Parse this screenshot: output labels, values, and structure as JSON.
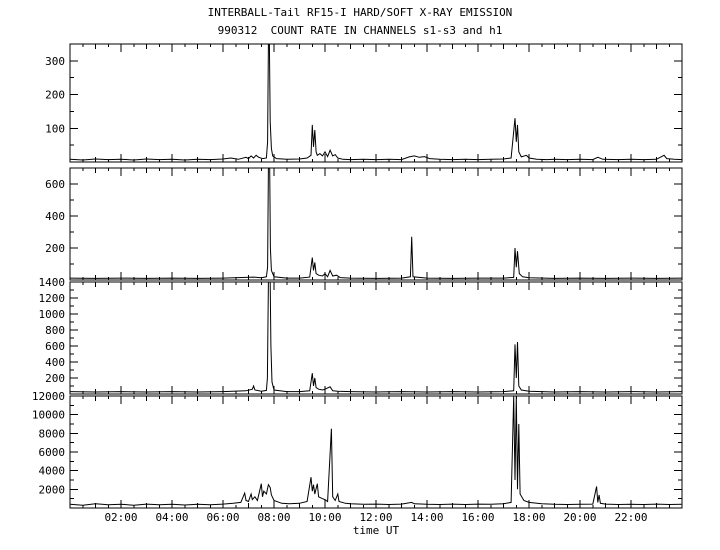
{
  "title": "INTERBALL-Tail RF15-I HARD/SOFT X-RAY EMISSION",
  "subtitle": "990312  COUNT RATE IN CHANNELS s1-s3 and h1",
  "xlabel": "time UT",
  "chart_data": {
    "type": "line",
    "title": "INTERBALL-Tail RF15-I HARD/SOFT X-RAY EMISSION",
    "subtitle": "990312  COUNT RATE IN CHANNELS s1-s3 and h1",
    "xlabel": "time UT",
    "x_unit": "hours_UT",
    "xlim": [
      0,
      24
    ],
    "xtick_hours": [
      2,
      4,
      6,
      8,
      10,
      12,
      14,
      16,
      18,
      20,
      22
    ],
    "xtick_labels": [
      "02:00",
      "04:00",
      "06:00",
      "08:00",
      "10:00",
      "12:00",
      "14:00",
      "16:00",
      "18:00",
      "20:00",
      "22:00"
    ],
    "line_color": "#000000",
    "background": "#ffffff",
    "grid": false,
    "legend": "none",
    "panels": [
      {
        "name": "s1",
        "ylim": [
          0,
          350
        ],
        "yticks": [
          100,
          200,
          300
        ],
        "points": [
          [
            0,
            8
          ],
          [
            0.5,
            6
          ],
          [
            1,
            9
          ],
          [
            1.5,
            7
          ],
          [
            2,
            8
          ],
          [
            2.5,
            6
          ],
          [
            3,
            9
          ],
          [
            3.5,
            7
          ],
          [
            4,
            8
          ],
          [
            4.5,
            6
          ],
          [
            5,
            8
          ],
          [
            5.5,
            7
          ],
          [
            6,
            9
          ],
          [
            6.3,
            12
          ],
          [
            6.6,
            8
          ],
          [
            6.9,
            14
          ],
          [
            7.0,
            10
          ],
          [
            7.1,
            18
          ],
          [
            7.2,
            12
          ],
          [
            7.3,
            20
          ],
          [
            7.4,
            14
          ],
          [
            7.55,
            10
          ],
          [
            7.7,
            12
          ],
          [
            7.75,
            60
          ],
          [
            7.78,
            360
          ],
          [
            7.82,
            355
          ],
          [
            7.85,
            120
          ],
          [
            7.9,
            40
          ],
          [
            7.95,
            18
          ],
          [
            8.1,
            10
          ],
          [
            8.5,
            8
          ],
          [
            9.0,
            9
          ],
          [
            9.3,
            12
          ],
          [
            9.45,
            20
          ],
          [
            9.5,
            110
          ],
          [
            9.55,
            45
          ],
          [
            9.6,
            95
          ],
          [
            9.65,
            30
          ],
          [
            9.7,
            20
          ],
          [
            9.8,
            25
          ],
          [
            9.9,
            18
          ],
          [
            10.0,
            30
          ],
          [
            10.1,
            16
          ],
          [
            10.2,
            35
          ],
          [
            10.3,
            18
          ],
          [
            10.4,
            22
          ],
          [
            10.5,
            12
          ],
          [
            10.7,
            8
          ],
          [
            11,
            7
          ],
          [
            11.5,
            8
          ],
          [
            12,
            7
          ],
          [
            12.5,
            8
          ],
          [
            13,
            7
          ],
          [
            13.3,
            15
          ],
          [
            13.5,
            18
          ],
          [
            13.7,
            14
          ],
          [
            13.9,
            16
          ],
          [
            14.1,
            10
          ],
          [
            14.5,
            8
          ],
          [
            15,
            7
          ],
          [
            15.5,
            8
          ],
          [
            16,
            7
          ],
          [
            16.5,
            8
          ],
          [
            17,
            9
          ],
          [
            17.3,
            12
          ],
          [
            17.45,
            130
          ],
          [
            17.5,
            60
          ],
          [
            17.55,
            110
          ],
          [
            17.6,
            30
          ],
          [
            17.7,
            15
          ],
          [
            17.9,
            20
          ],
          [
            18.0,
            12
          ],
          [
            18.3,
            8
          ],
          [
            18.7,
            7
          ],
          [
            19,
            8
          ],
          [
            19.5,
            7
          ],
          [
            20,
            8
          ],
          [
            20.5,
            7
          ],
          [
            20.7,
            14
          ],
          [
            20.9,
            8
          ],
          [
            21.5,
            7
          ],
          [
            22,
            8
          ],
          [
            22.5,
            7
          ],
          [
            23,
            8
          ],
          [
            23.3,
            20
          ],
          [
            23.4,
            10
          ],
          [
            23.7,
            8
          ],
          [
            24,
            7
          ]
        ]
      },
      {
        "name": "s2",
        "ylim": [
          0,
          700
        ],
        "yticks": [
          200,
          400,
          600
        ],
        "points": [
          [
            0,
            12
          ],
          [
            1,
            10
          ],
          [
            2,
            12
          ],
          [
            3,
            10
          ],
          [
            4,
            12
          ],
          [
            5,
            10
          ],
          [
            6,
            12
          ],
          [
            6.9,
            16
          ],
          [
            7.2,
            18
          ],
          [
            7.5,
            14
          ],
          [
            7.7,
            20
          ],
          [
            7.75,
            80
          ],
          [
            7.78,
            720
          ],
          [
            7.83,
            700
          ],
          [
            7.86,
            200
          ],
          [
            7.9,
            60
          ],
          [
            8.0,
            20
          ],
          [
            8.5,
            12
          ],
          [
            9.0,
            12
          ],
          [
            9.4,
            18
          ],
          [
            9.5,
            140
          ],
          [
            9.55,
            60
          ],
          [
            9.6,
            110
          ],
          [
            9.65,
            40
          ],
          [
            9.75,
            30
          ],
          [
            9.9,
            25
          ],
          [
            10.0,
            40
          ],
          [
            10.1,
            20
          ],
          [
            10.2,
            60
          ],
          [
            10.3,
            25
          ],
          [
            10.45,
            30
          ],
          [
            10.6,
            15
          ],
          [
            11,
            12
          ],
          [
            12,
            10
          ],
          [
            13,
            12
          ],
          [
            13.35,
            20
          ],
          [
            13.4,
            270
          ],
          [
            13.45,
            20
          ],
          [
            14,
            12
          ],
          [
            15,
            10
          ],
          [
            16,
            12
          ],
          [
            17,
            12
          ],
          [
            17.4,
            16
          ],
          [
            17.45,
            200
          ],
          [
            17.5,
            80
          ],
          [
            17.55,
            180
          ],
          [
            17.62,
            40
          ],
          [
            17.75,
            20
          ],
          [
            18,
            14
          ],
          [
            19,
            10
          ],
          [
            20,
            12
          ],
          [
            21,
            10
          ],
          [
            22,
            12
          ],
          [
            23,
            10
          ],
          [
            24,
            12
          ]
        ]
      },
      {
        "name": "s3",
        "ylim": [
          0,
          1400
        ],
        "yticks": [
          200,
          400,
          600,
          800,
          1000,
          1200,
          1400
        ],
        "points": [
          [
            0,
            30
          ],
          [
            1,
            25
          ],
          [
            2,
            30
          ],
          [
            3,
            25
          ],
          [
            4,
            30
          ],
          [
            5,
            25
          ],
          [
            6,
            30
          ],
          [
            6.9,
            40
          ],
          [
            7.15,
            60
          ],
          [
            7.2,
            100
          ],
          [
            7.25,
            50
          ],
          [
            7.5,
            35
          ],
          [
            7.7,
            45
          ],
          [
            7.74,
            200
          ],
          [
            7.78,
            1420
          ],
          [
            7.85,
            1400
          ],
          [
            7.88,
            600
          ],
          [
            7.92,
            150
          ],
          [
            8.0,
            50
          ],
          [
            8.5,
            30
          ],
          [
            9.0,
            30
          ],
          [
            9.4,
            40
          ],
          [
            9.5,
            260
          ],
          [
            9.55,
            100
          ],
          [
            9.6,
            200
          ],
          [
            9.65,
            80
          ],
          [
            9.75,
            60
          ],
          [
            9.9,
            50
          ],
          [
            10.0,
            60
          ],
          [
            10.2,
            90
          ],
          [
            10.3,
            40
          ],
          [
            10.5,
            35
          ],
          [
            11,
            30
          ],
          [
            12,
            25
          ],
          [
            13,
            30
          ],
          [
            14,
            25
          ],
          [
            15,
            30
          ],
          [
            16,
            25
          ],
          [
            17,
            30
          ],
          [
            17.4,
            40
          ],
          [
            17.45,
            620
          ],
          [
            17.5,
            200
          ],
          [
            17.55,
            650
          ],
          [
            17.6,
            100
          ],
          [
            17.7,
            50
          ],
          [
            18,
            35
          ],
          [
            19,
            25
          ],
          [
            20,
            30
          ],
          [
            21,
            25
          ],
          [
            22,
            30
          ],
          [
            23,
            25
          ],
          [
            24,
            30
          ]
        ]
      },
      {
        "name": "h1",
        "ylim": [
          0,
          12000
        ],
        "yticks": [
          2000,
          4000,
          6000,
          8000,
          10000,
          12000
        ],
        "points": [
          [
            0,
            400
          ],
          [
            0.5,
            300
          ],
          [
            1,
            450
          ],
          [
            1.5,
            350
          ],
          [
            2,
            400
          ],
          [
            2.5,
            300
          ],
          [
            3,
            420
          ],
          [
            3.5,
            350
          ],
          [
            4,
            400
          ],
          [
            4.5,
            320
          ],
          [
            5,
            400
          ],
          [
            5.5,
            350
          ],
          [
            6,
            420
          ],
          [
            6.4,
            500
          ],
          [
            6.7,
            600
          ],
          [
            6.85,
            1600
          ],
          [
            6.9,
            800
          ],
          [
            7.0,
            700
          ],
          [
            7.1,
            1500
          ],
          [
            7.15,
            900
          ],
          [
            7.25,
            1200
          ],
          [
            7.35,
            800
          ],
          [
            7.5,
            2600
          ],
          [
            7.55,
            1200
          ],
          [
            7.6,
            1800
          ],
          [
            7.7,
            1500
          ],
          [
            7.78,
            2500
          ],
          [
            7.85,
            2200
          ],
          [
            7.9,
            1400
          ],
          [
            8.0,
            800
          ],
          [
            8.3,
            500
          ],
          [
            8.6,
            450
          ],
          [
            9.0,
            500
          ],
          [
            9.3,
            700
          ],
          [
            9.45,
            3300
          ],
          [
            9.5,
            1800
          ],
          [
            9.55,
            2500
          ],
          [
            9.6,
            1500
          ],
          [
            9.7,
            2600
          ],
          [
            9.75,
            1200
          ],
          [
            9.9,
            1000
          ],
          [
            10.0,
            900
          ],
          [
            10.1,
            700
          ],
          [
            10.25,
            8500
          ],
          [
            10.3,
            1200
          ],
          [
            10.4,
            800
          ],
          [
            10.5,
            1500
          ],
          [
            10.55,
            700
          ],
          [
            10.8,
            500
          ],
          [
            11,
            450
          ],
          [
            11.5,
            400
          ],
          [
            12,
            420
          ],
          [
            12.5,
            380
          ],
          [
            13,
            420
          ],
          [
            13.4,
            600
          ],
          [
            13.5,
            450
          ],
          [
            14,
            400
          ],
          [
            14.5,
            380
          ],
          [
            15,
            420
          ],
          [
            15.5,
            380
          ],
          [
            16,
            420
          ],
          [
            16.5,
            400
          ],
          [
            17,
            450
          ],
          [
            17.3,
            600
          ],
          [
            17.4,
            12200
          ],
          [
            17.45,
            3000
          ],
          [
            17.5,
            12200
          ],
          [
            17.55,
            2000
          ],
          [
            17.6,
            9000
          ],
          [
            17.65,
            1500
          ],
          [
            17.8,
            800
          ],
          [
            18,
            600
          ],
          [
            18.5,
            450
          ],
          [
            19,
            400
          ],
          [
            19.5,
            380
          ],
          [
            20,
            400
          ],
          [
            20.5,
            420
          ],
          [
            20.65,
            2300
          ],
          [
            20.7,
            600
          ],
          [
            20.75,
            1400
          ],
          [
            20.8,
            500
          ],
          [
            21,
            420
          ],
          [
            21.5,
            380
          ],
          [
            22,
            400
          ],
          [
            22.5,
            380
          ],
          [
            23,
            420
          ],
          [
            23.5,
            380
          ],
          [
            24,
            400
          ]
        ]
      }
    ]
  }
}
